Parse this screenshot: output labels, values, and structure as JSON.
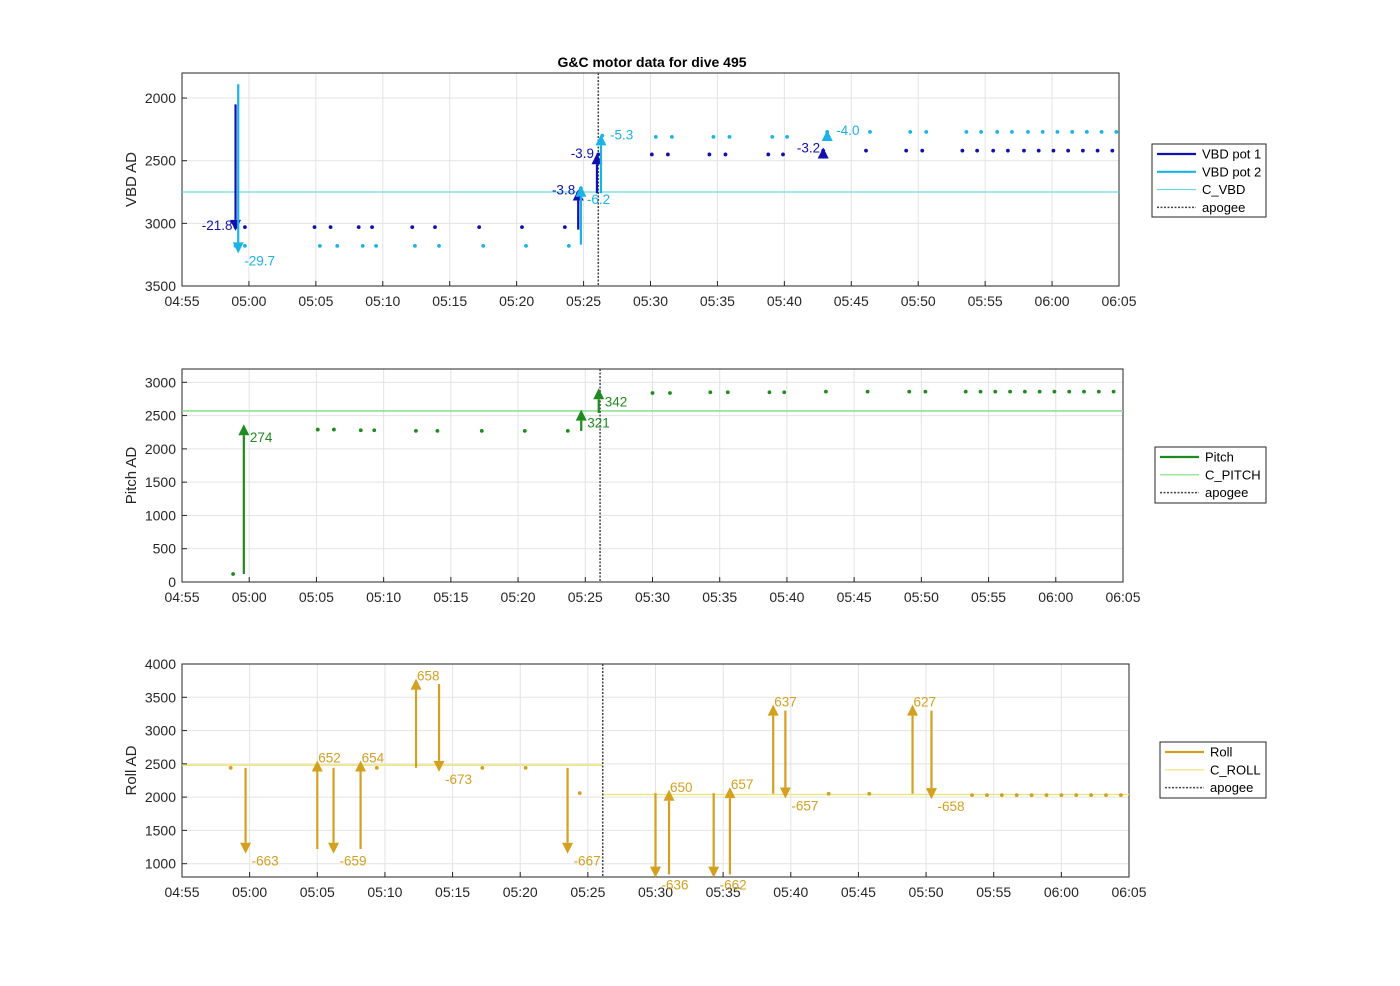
{
  "figure": {
    "title": "G&C motor data for dive 495"
  },
  "chart_data": [
    {
      "type": "scatter",
      "id": "vbd",
      "ylabel": "VBD AD",
      "xlim": [
        "04:55",
        "06:05"
      ],
      "ylim": [
        3500,
        1800
      ],
      "y_reversed": true,
      "yticks": [
        2000,
        2500,
        3000,
        3500
      ],
      "xticks": [
        "04:55",
        "05:00",
        "05:05",
        "05:10",
        "05:15",
        "05:20",
        "05:25",
        "05:30",
        "05:35",
        "05:40",
        "05:45",
        "05:50",
        "05:55",
        "06:00",
        "06:05"
      ],
      "grid": true,
      "apogee": "05:26.1",
      "reference_lines": [
        {
          "name": "C_VBD",
          "y": 2750,
          "color": "#66d9e8"
        }
      ],
      "series": [
        {
          "name": "VBD pot 1",
          "color": "#1010b0",
          "points": [
            [
              "04:59.0",
              3030
            ],
            [
              "04:59.7",
              3030
            ],
            [
              "05:04.9",
              3030
            ],
            [
              "05:06.1",
              3030
            ],
            [
              "05:08.2",
              3030
            ],
            [
              "05:09.2",
              3030
            ],
            [
              "05:12.2",
              3030
            ],
            [
              "05:13.9",
              3030
            ],
            [
              "05:17.2",
              3030
            ],
            [
              "05:20.4",
              3030
            ],
            [
              "05:23.6",
              3030
            ],
            [
              "05:24.6",
              2760
            ],
            [
              "05:26.1",
              2450
            ],
            [
              "05:30.1",
              2450
            ],
            [
              "05:31.3",
              2450
            ],
            [
              "05:34.4",
              2450
            ],
            [
              "05:35.6",
              2450
            ],
            [
              "05:38.8",
              2450
            ],
            [
              "05:39.9",
              2450
            ],
            [
              "05:42.9",
              2420
            ],
            [
              "05:46.1",
              2420
            ],
            [
              "05:49.1",
              2420
            ],
            [
              "05:50.3",
              2420
            ],
            [
              "05:53.3",
              2420
            ],
            [
              "05:54.4",
              2420
            ],
            [
              "05:55.6",
              2420
            ],
            [
              "05:56.7",
              2420
            ],
            [
              "05:57.9",
              2420
            ],
            [
              "05:59.0",
              2420
            ],
            [
              "06:00.1",
              2420
            ],
            [
              "06:01.2",
              2420
            ],
            [
              "06:02.3",
              2420
            ],
            [
              "06:03.4",
              2420
            ],
            [
              "06:04.5",
              2420
            ]
          ]
        },
        {
          "name": "VBD pot 2",
          "color": "#1bb3e6",
          "points": [
            [
              "04:59.0",
              3180
            ],
            [
              "04:59.7",
              3180
            ],
            [
              "05:05.3",
              3180
            ],
            [
              "05:06.6",
              3180
            ],
            [
              "05:08.5",
              3180
            ],
            [
              "05:09.5",
              3180
            ],
            [
              "05:12.4",
              3180
            ],
            [
              "05:14.2",
              3180
            ],
            [
              "05:17.5",
              3180
            ],
            [
              "05:20.7",
              3180
            ],
            [
              "05:23.9",
              3180
            ],
            [
              "05:24.8",
              2720
            ],
            [
              "05:26.4",
              2300
            ],
            [
              "05:30.4",
              2310
            ],
            [
              "05:31.6",
              2310
            ],
            [
              "05:34.7",
              2310
            ],
            [
              "05:35.9",
              2310
            ],
            [
              "05:39.1",
              2310
            ],
            [
              "05:40.2",
              2310
            ],
            [
              "05:43.2",
              2270
            ],
            [
              "05:46.4",
              2270
            ],
            [
              "05:49.4",
              2270
            ],
            [
              "05:50.6",
              2270
            ],
            [
              "05:53.6",
              2270
            ],
            [
              "05:54.7",
              2270
            ],
            [
              "05:55.9",
              2270
            ],
            [
              "05:57.0",
              2270
            ],
            [
              "05:58.2",
              2270
            ],
            [
              "05:59.3",
              2270
            ],
            [
              "06:00.4",
              2270
            ],
            [
              "06:01.5",
              2270
            ],
            [
              "06:02.6",
              2270
            ],
            [
              "06:03.7",
              2270
            ],
            [
              "06:04.8",
              2270
            ]
          ]
        }
      ],
      "moves": [
        {
          "series": 0,
          "t": "04:59.0",
          "from": 2050,
          "to": 3060,
          "label": "-21.8",
          "label_side": "left"
        },
        {
          "series": 1,
          "t": "04:59.2",
          "from": 1890,
          "to": 3240,
          "label": "-29.7",
          "label_side": "right-below"
        },
        {
          "series": 0,
          "t": "05:24.6",
          "from": 3050,
          "to": 2730,
          "label": "-3.8",
          "label_side": "left"
        },
        {
          "series": 1,
          "t": "05:24.8",
          "from": 3170,
          "to": 2700,
          "label": "-6.2",
          "label_side": "right-below"
        },
        {
          "series": 0,
          "t": "05:26.0",
          "from": 2760,
          "to": 2440,
          "label": "-3.9",
          "label_side": "left"
        },
        {
          "series": 1,
          "t": "05:26.3",
          "from": 2760,
          "to": 2290,
          "label": "-5.3",
          "label_side": "right"
        },
        {
          "series": 0,
          "t": "05:42.9",
          "from": 2430,
          "to": 2395,
          "label": "-3.2",
          "label_side": "left"
        },
        {
          "series": 1,
          "t": "05:43.2",
          "from": 2290,
          "to": 2255,
          "label": "-4.0",
          "label_side": "right"
        }
      ]
    },
    {
      "type": "scatter",
      "id": "pitch",
      "ylabel": "Pitch AD",
      "xlim": [
        "04:55",
        "06:05"
      ],
      "ylim": [
        0,
        3200
      ],
      "yticks": [
        0,
        500,
        1000,
        1500,
        2000,
        2500,
        3000
      ],
      "xticks": [
        "04:55",
        "05:00",
        "05:05",
        "05:10",
        "05:15",
        "05:20",
        "05:25",
        "05:30",
        "05:35",
        "05:40",
        "05:45",
        "05:50",
        "05:55",
        "06:00",
        "06:05"
      ],
      "grid": true,
      "apogee": "05:26.1",
      "reference_lines": [
        {
          "name": "C_PITCH",
          "y": 2570,
          "color": "#7fdc7f"
        }
      ],
      "series": [
        {
          "name": "Pitch",
          "color": "#1f8a1f",
          "points": [
            [
              "04:58.8",
              120
            ],
            [
              "05:05.1",
              2290
            ],
            [
              "05:06.3",
              2290
            ],
            [
              "05:08.3",
              2280
            ],
            [
              "05:09.3",
              2280
            ],
            [
              "05:12.4",
              2270
            ],
            [
              "05:14.0",
              2270
            ],
            [
              "05:17.3",
              2270
            ],
            [
              "05:20.5",
              2270
            ],
            [
              "05:23.7",
              2270
            ],
            [
              "05:24.7",
              2520
            ],
            [
              "05:26.0",
              2840
            ],
            [
              "05:30.0",
              2840
            ],
            [
              "05:31.3",
              2840
            ],
            [
              "05:34.3",
              2850
            ],
            [
              "05:35.6",
              2850
            ],
            [
              "05:38.7",
              2850
            ],
            [
              "05:39.8",
              2850
            ],
            [
              "05:42.9",
              2860
            ],
            [
              "05:46.0",
              2860
            ],
            [
              "05:49.1",
              2860
            ],
            [
              "05:50.3",
              2860
            ],
            [
              "05:53.3",
              2860
            ],
            [
              "05:54.4",
              2860
            ],
            [
              "05:55.5",
              2860
            ],
            [
              "05:56.6",
              2860
            ],
            [
              "05:57.7",
              2860
            ],
            [
              "05:58.8",
              2860
            ],
            [
              "05:59.9",
              2860
            ],
            [
              "06:01.0",
              2860
            ],
            [
              "06:02.1",
              2860
            ],
            [
              "06:03.2",
              2860
            ],
            [
              "06:04.3",
              2860
            ]
          ]
        }
      ],
      "moves": [
        {
          "series": 0,
          "t": "04:59.6",
          "from": 120,
          "to": 2370,
          "label": "274",
          "label_side": "right-below"
        },
        {
          "series": 0,
          "t": "05:24.7",
          "from": 2270,
          "to": 2590,
          "label": "321",
          "label_side": "right-below"
        },
        {
          "series": 0,
          "t": "05:26.0",
          "from": 2540,
          "to": 2910,
          "label": "342",
          "label_side": "right-below"
        }
      ]
    },
    {
      "type": "scatter",
      "id": "roll",
      "ylabel": "Roll AD",
      "xlim": [
        "04:55",
        "06:05"
      ],
      "ylim": [
        800,
        4000
      ],
      "yticks": [
        1000,
        1500,
        2000,
        2500,
        3000,
        3500,
        4000
      ],
      "xticks": [
        "04:55",
        "05:00",
        "05:05",
        "05:10",
        "05:15",
        "05:20",
        "05:25",
        "05:30",
        "05:35",
        "05:40",
        "05:45",
        "05:50",
        "05:55",
        "06:00",
        "06:05"
      ],
      "grid": true,
      "apogee": "05:26.1",
      "reference_lines": [
        {
          "name": "C_ROLL",
          "y": 2480,
          "color": "#f2e36b",
          "until": "05:26.1"
        },
        {
          "name": "C_ROLL",
          "y": 2040,
          "color": "#f2e36b",
          "from": "05:26.1"
        }
      ],
      "series": [
        {
          "name": "Roll",
          "color": "#d4a020",
          "points": [
            [
              "04:58.6",
              2440
            ],
            [
              "05:09.4",
              2440
            ],
            [
              "05:17.2",
              2440
            ],
            [
              "05:20.4",
              2440
            ],
            [
              "05:24.4",
              2060
            ],
            [
              "05:42.8",
              2050
            ],
            [
              "05:45.8",
              2050
            ],
            [
              "05:53.4",
              2030
            ],
            [
              "05:54.5",
              2030
            ],
            [
              "05:55.6",
              2030
            ],
            [
              "05:56.7",
              2030
            ],
            [
              "05:57.8",
              2030
            ],
            [
              "05:58.9",
              2030
            ],
            [
              "06:00.0",
              2030
            ],
            [
              "06:01.1",
              2030
            ],
            [
              "06:02.2",
              2030
            ],
            [
              "06:03.3",
              2030
            ],
            [
              "06:04.4",
              2030
            ]
          ]
        }
      ],
      "moves": [
        {
          "series": 0,
          "t": "04:59.7",
          "from": 2440,
          "to": 1150,
          "label": "-663",
          "label_side": "right-below"
        },
        {
          "series": 0,
          "t": "05:05.0",
          "from": 1220,
          "to": 2550,
          "label": "652",
          "label_side": "right-top"
        },
        {
          "series": 0,
          "t": "05:06.2",
          "from": 2440,
          "to": 1150,
          "label": "-659",
          "label_side": "right-below"
        },
        {
          "series": 0,
          "t": "05:08.2",
          "from": 1220,
          "to": 2550,
          "label": "654",
          "label_side": "right-top"
        },
        {
          "series": 0,
          "t": "05:12.3",
          "from": 2440,
          "to": 3780,
          "label": "658",
          "label_side": "right-top"
        },
        {
          "series": 0,
          "t": "05:14.0",
          "from": 3700,
          "to": 2380,
          "label": "-673",
          "label_side": "right-below"
        },
        {
          "series": 0,
          "t": "05:23.5",
          "from": 2440,
          "to": 1150,
          "label": "-667",
          "label_side": "right-below"
        },
        {
          "series": 0,
          "t": "05:30.0",
          "from": 2060,
          "to": 790,
          "label": "-636",
          "label_side": "right-below"
        },
        {
          "series": 0,
          "t": "05:31.0",
          "from": 840,
          "to": 2110,
          "label": "650",
          "label_side": "right-top"
        },
        {
          "series": 0,
          "t": "05:34.3",
          "from": 2060,
          "to": 790,
          "label": "-662",
          "label_side": "right-below"
        },
        {
          "series": 0,
          "t": "05:35.5",
          "from": 840,
          "to": 2150,
          "label": "657",
          "label_side": "right-top"
        },
        {
          "series": 0,
          "t": "05:38.7",
          "from": 2050,
          "to": 3390,
          "label": "637",
          "label_side": "right-top"
        },
        {
          "series": 0,
          "t": "05:39.6",
          "from": 3300,
          "to": 1980,
          "label": "-657",
          "label_side": "right-below"
        },
        {
          "series": 0,
          "t": "05:49.0",
          "from": 2050,
          "to": 3390,
          "label": "627",
          "label_side": "right-top"
        },
        {
          "series": 0,
          "t": "05:50.4",
          "from": 3300,
          "to": 1970,
          "label": "-658",
          "label_side": "right-below"
        }
      ]
    }
  ],
  "legends": [
    {
      "entries": [
        {
          "label": "VBD pot 1",
          "color": "#1010b0",
          "style": "thick"
        },
        {
          "label": "VBD pot 2",
          "color": "#1bb3e6",
          "style": "thick"
        },
        {
          "label": "C_VBD",
          "color": "#66d9e8",
          "style": "thin"
        },
        {
          "label": "apogee",
          "color": "#444444",
          "style": "dotted"
        }
      ]
    },
    {
      "entries": [
        {
          "label": "Pitch",
          "color": "#1f8a1f",
          "style": "thick"
        },
        {
          "label": "C_PITCH",
          "color": "#7fdc7f",
          "style": "thin"
        },
        {
          "label": "apogee",
          "color": "#444444",
          "style": "dotted"
        }
      ]
    },
    {
      "entries": [
        {
          "label": "Roll",
          "color": "#d4a020",
          "style": "thick"
        },
        {
          "label": "C_ROLL",
          "color": "#f2e36b",
          "style": "thin"
        },
        {
          "label": "apogee",
          "color": "#444444",
          "style": "dotted"
        }
      ]
    }
  ]
}
